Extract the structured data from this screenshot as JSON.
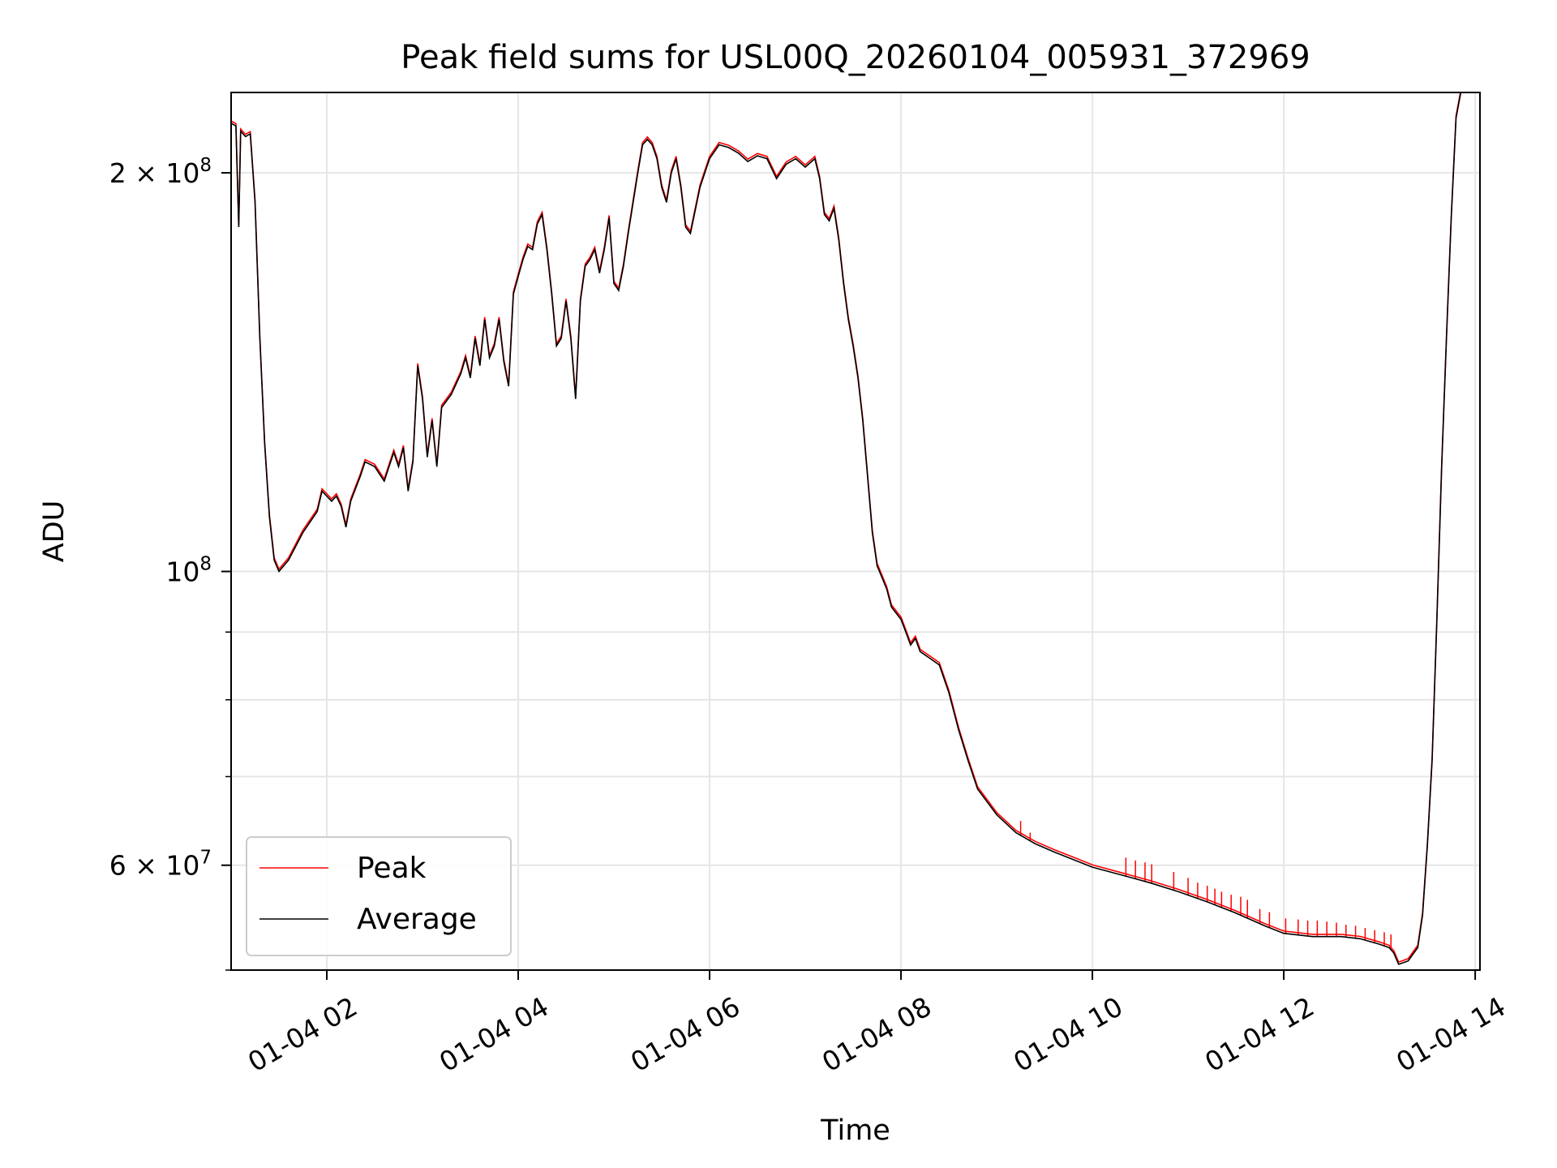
{
  "chart_data": {
    "type": "line",
    "title": "Peak field sums for USL00Q_20260104_005931_372969",
    "xlabel": "Time",
    "ylabel": "ADU",
    "yscale": "log",
    "ylim": [
      50000000,
      230000000
    ],
    "xlim_hours": [
      1.0,
      14.05
    ],
    "grid": true,
    "legend_position": "lower-left",
    "x_ticks": [
      {
        "value": 2,
        "label": "01-04 02"
      },
      {
        "value": 4,
        "label": "01-04 04"
      },
      {
        "value": 6,
        "label": "01-04 06"
      },
      {
        "value": 8,
        "label": "01-04 08"
      },
      {
        "value": 10,
        "label": "01-04 10"
      },
      {
        "value": 12,
        "label": "01-04 12"
      },
      {
        "value": 14,
        "label": "01-04 14"
      }
    ],
    "y_major_ticks": [
      {
        "value": 100000000,
        "label_base": "10",
        "label_exp": "8",
        "label_mant": ""
      },
      {
        "value": 200000000,
        "label_base": "10",
        "label_exp": "8",
        "label_mant": "2 × "
      },
      {
        "value": 60000000,
        "label_base": "10",
        "label_exp": "7",
        "label_mant": "6 × "
      }
    ],
    "y_minor_ticks": [
      50000000,
      70000000,
      80000000,
      90000000
    ],
    "series": [
      {
        "name": "Peak",
        "color": "#ff0000"
      },
      {
        "name": "Average",
        "color": "#000000"
      }
    ],
    "average_points": [
      [
        1.0,
        218
      ],
      [
        1.05,
        217
      ],
      [
        1.08,
        182
      ],
      [
        1.1,
        215
      ],
      [
        1.15,
        213
      ],
      [
        1.2,
        214
      ],
      [
        1.25,
        190
      ],
      [
        1.3,
        150
      ],
      [
        1.35,
        125
      ],
      [
        1.4,
        110
      ],
      [
        1.45,
        102
      ],
      [
        1.5,
        100
      ],
      [
        1.6,
        102
      ],
      [
        1.75,
        107
      ],
      [
        1.9,
        111
      ],
      [
        1.95,
        115
      ],
      [
        2.05,
        113
      ],
      [
        2.1,
        114
      ],
      [
        2.15,
        112
      ],
      [
        2.2,
        108
      ],
      [
        2.25,
        113
      ],
      [
        2.35,
        118
      ],
      [
        2.4,
        121
      ],
      [
        2.5,
        120
      ],
      [
        2.6,
        117
      ],
      [
        2.7,
        123
      ],
      [
        2.75,
        120
      ],
      [
        2.8,
        124
      ],
      [
        2.85,
        115
      ],
      [
        2.9,
        121
      ],
      [
        2.95,
        143
      ],
      [
        3.0,
        135
      ],
      [
        3.05,
        122
      ],
      [
        3.1,
        130
      ],
      [
        3.15,
        120
      ],
      [
        3.2,
        133
      ],
      [
        3.3,
        136
      ],
      [
        3.4,
        141
      ],
      [
        3.45,
        145
      ],
      [
        3.5,
        140
      ],
      [
        3.55,
        150
      ],
      [
        3.6,
        143
      ],
      [
        3.65,
        155
      ],
      [
        3.7,
        145
      ],
      [
        3.75,
        148
      ],
      [
        3.8,
        155
      ],
      [
        3.85,
        144
      ],
      [
        3.9,
        138
      ],
      [
        3.95,
        162
      ],
      [
        4.0,
        167
      ],
      [
        4.05,
        172
      ],
      [
        4.1,
        176
      ],
      [
        4.15,
        175
      ],
      [
        4.2,
        183
      ],
      [
        4.25,
        186
      ],
      [
        4.3,
        175
      ],
      [
        4.35,
        162
      ],
      [
        4.4,
        148
      ],
      [
        4.45,
        150
      ],
      [
        4.5,
        160
      ],
      [
        4.55,
        150
      ],
      [
        4.6,
        135
      ],
      [
        4.65,
        160
      ],
      [
        4.7,
        170
      ],
      [
        4.75,
        172
      ],
      [
        4.8,
        175
      ],
      [
        4.85,
        168
      ],
      [
        4.9,
        175
      ],
      [
        4.95,
        185
      ],
      [
        5.0,
        165
      ],
      [
        5.05,
        163
      ],
      [
        5.1,
        170
      ],
      [
        5.15,
        180
      ],
      [
        5.25,
        200
      ],
      [
        5.3,
        210
      ],
      [
        5.35,
        212
      ],
      [
        5.4,
        210
      ],
      [
        5.45,
        205
      ],
      [
        5.5,
        195
      ],
      [
        5.55,
        190
      ],
      [
        5.6,
        200
      ],
      [
        5.65,
        205
      ],
      [
        5.7,
        195
      ],
      [
        5.75,
        182
      ],
      [
        5.8,
        180
      ],
      [
        5.9,
        195
      ],
      [
        5.95,
        200
      ],
      [
        6.0,
        205
      ],
      [
        6.1,
        210
      ],
      [
        6.2,
        209
      ],
      [
        6.3,
        207
      ],
      [
        6.4,
        204
      ],
      [
        6.5,
        206
      ],
      [
        6.6,
        205
      ],
      [
        6.7,
        198
      ],
      [
        6.8,
        203
      ],
      [
        6.9,
        205
      ],
      [
        7.0,
        202
      ],
      [
        7.1,
        205
      ],
      [
        7.15,
        198
      ],
      [
        7.2,
        186
      ],
      [
        7.25,
        184
      ],
      [
        7.3,
        188
      ],
      [
        7.35,
        178
      ],
      [
        7.4,
        165
      ],
      [
        7.45,
        155
      ],
      [
        7.5,
        148
      ],
      [
        7.55,
        140
      ],
      [
        7.6,
        130
      ],
      [
        7.65,
        118
      ],
      [
        7.7,
        107
      ],
      [
        7.75,
        101
      ],
      [
        7.8,
        99
      ],
      [
        7.85,
        97
      ],
      [
        7.9,
        94
      ],
      [
        8.0,
        92
      ],
      [
        8.05,
        90
      ],
      [
        8.1,
        88
      ],
      [
        8.15,
        89
      ],
      [
        8.2,
        87
      ],
      [
        8.3,
        86
      ],
      [
        8.4,
        85
      ],
      [
        8.5,
        81
      ],
      [
        8.6,
        76
      ],
      [
        8.7,
        72
      ],
      [
        8.8,
        68.5
      ],
      [
        9.0,
        65.5
      ],
      [
        9.2,
        63.5
      ],
      [
        9.4,
        62.3
      ],
      [
        9.6,
        61.4
      ],
      [
        9.8,
        60.6
      ],
      [
        10.0,
        59.8
      ],
      [
        10.3,
        59
      ],
      [
        10.6,
        58.2
      ],
      [
        10.9,
        57.3
      ],
      [
        11.2,
        56.3
      ],
      [
        11.5,
        55.2
      ],
      [
        11.8,
        54
      ],
      [
        12.0,
        53.3
      ],
      [
        12.3,
        53
      ],
      [
        12.6,
        53
      ],
      [
        12.8,
        52.8
      ],
      [
        13.0,
        52.3
      ],
      [
        13.1,
        52
      ],
      [
        13.15,
        51.5
      ],
      [
        13.2,
        50.5
      ],
      [
        13.3,
        50.8
      ],
      [
        13.4,
        52
      ],
      [
        13.45,
        55
      ],
      [
        13.5,
        62
      ],
      [
        13.55,
        72
      ],
      [
        13.6,
        92
      ],
      [
        13.65,
        120
      ],
      [
        13.7,
        150
      ],
      [
        13.75,
        185
      ],
      [
        13.8,
        220
      ],
      [
        13.85,
        230
      ]
    ],
    "peak_spikes": [
      [
        9.25,
        64.8
      ],
      [
        9.35,
        63.5
      ],
      [
        10.35,
        60.8
      ],
      [
        10.45,
        60.5
      ],
      [
        10.55,
        60.3
      ],
      [
        10.62,
        60.1
      ],
      [
        10.85,
        59.3
      ],
      [
        11.0,
        58.7
      ],
      [
        11.1,
        58.2
      ],
      [
        11.2,
        57.9
      ],
      [
        11.28,
        57.6
      ],
      [
        11.35,
        57.3
      ],
      [
        11.45,
        57.0
      ],
      [
        11.55,
        56.8
      ],
      [
        11.62,
        56.5
      ],
      [
        11.75,
        55.6
      ],
      [
        11.85,
        55.3
      ],
      [
        12.02,
        54.7
      ],
      [
        12.15,
        54.6
      ],
      [
        12.25,
        54.5
      ],
      [
        12.35,
        54.5
      ],
      [
        12.45,
        54.4
      ],
      [
        12.55,
        54.3
      ],
      [
        12.65,
        54.1
      ],
      [
        12.75,
        54.0
      ],
      [
        12.85,
        53.8
      ],
      [
        12.95,
        53.6
      ],
      [
        13.05,
        53.4
      ],
      [
        13.12,
        53.2
      ]
    ]
  }
}
